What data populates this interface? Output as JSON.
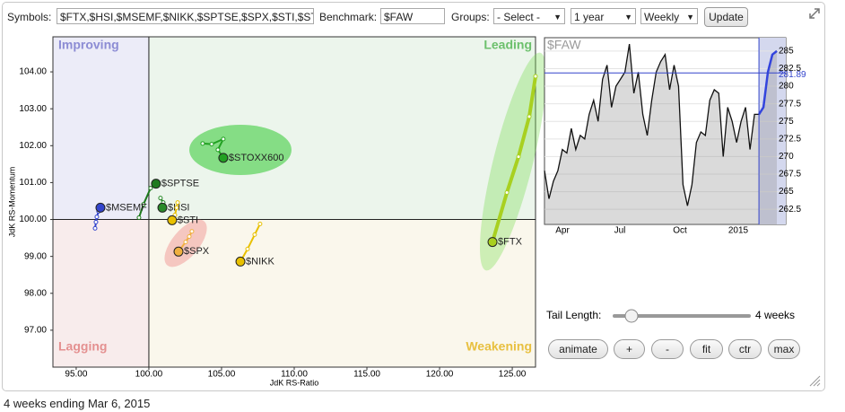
{
  "toolbar": {
    "symbols_label": "Symbols:",
    "symbols_value": "$FTX,$HSI,$MSEMF,$NIKK,$SPTSE,$SPX,$STI,$ST",
    "benchmark_label": "Benchmark:",
    "benchmark_value": "$FAW",
    "groups_label": "Groups:",
    "groups_value": "- Select -",
    "period": "1 year",
    "frequency": "Weekly",
    "update_button": "Update"
  },
  "rrg": {
    "xlabel": "JdK RS-Ratio",
    "ylabel": "JdK RS-Momentum",
    "xlim": [
      93.4,
      126.6
    ],
    "ylim": [
      96.0,
      104.95
    ],
    "center": [
      100,
      100
    ],
    "xticks": [
      {
        "value": 95,
        "label": "95.00"
      },
      {
        "value": 100,
        "label": "100.00"
      },
      {
        "value": 105,
        "label": "105.00"
      },
      {
        "value": 110,
        "label": "110.00"
      },
      {
        "value": 115,
        "label": "115.00"
      },
      {
        "value": 120,
        "label": "120.00"
      },
      {
        "value": 125,
        "label": "125.00"
      }
    ],
    "yticks": [
      {
        "value": 97,
        "label": "97.00"
      },
      {
        "value": 98,
        "label": "98.00"
      },
      {
        "value": 99,
        "label": "99.00"
      },
      {
        "value": 100,
        "label": "100.00"
      },
      {
        "value": 101,
        "label": "101.00"
      },
      {
        "value": 102,
        "label": "102.00"
      },
      {
        "value": 103,
        "label": "103.00"
      },
      {
        "value": 104,
        "label": "104.00"
      }
    ],
    "quadrants": {
      "improving": "Improving",
      "leading": "Leading",
      "weakening": "Weakening",
      "lagging": "Lagging"
    },
    "series": [
      {
        "name": "$FTX",
        "color": "#a8d020",
        "x": [
          126.6,
          126.17,
          125.43,
          124.63,
          123.64
        ],
        "y": [
          103.88,
          102.79,
          101.7,
          100.73,
          99.39
        ]
      },
      {
        "name": "$STOXX600",
        "color": "#22a022",
        "x": [
          103.7,
          104.32,
          105.12,
          104.75,
          105.12
        ],
        "y": [
          102.06,
          102.04,
          102.18,
          101.89,
          101.67
        ]
      },
      {
        "name": "$SPTSE",
        "color": "#1e7a1e",
        "x": [
          99.32,
          99.63,
          100.12,
          100.37,
          100.49
        ],
        "y": [
          100.05,
          100.41,
          100.85,
          100.92,
          100.97
        ]
      },
      {
        "name": "$HSI",
        "color": "#2a8a2a",
        "x": [
          100.8,
          100.99,
          100.86,
          100.93
        ],
        "y": [
          100.58,
          100.46,
          100.39,
          100.32
        ]
      },
      {
        "name": "$MSEMF",
        "color": "#3344cc",
        "x": [
          96.3,
          96.36,
          96.42,
          96.54,
          96.67
        ],
        "y": [
          99.76,
          99.93,
          100.07,
          100.22,
          100.32
        ]
      },
      {
        "name": "$STI",
        "color": "#e8c000",
        "x": [
          101.98,
          101.91,
          101.79,
          101.6
        ],
        "y": [
          100.46,
          100.32,
          100.12,
          99.98
        ]
      },
      {
        "name": "$SPX",
        "color": "#f0b040",
        "x": [
          102.96,
          102.78,
          102.53,
          102.04
        ],
        "y": [
          99.68,
          99.54,
          99.39,
          99.13
        ]
      },
      {
        "name": "$NIKK",
        "color": "#e8c000",
        "x": [
          107.65,
          107.28,
          106.79,
          106.3
        ],
        "y": [
          99.88,
          99.59,
          99.2,
          98.86
        ]
      }
    ]
  },
  "benchmark_chart": {
    "title": "$FAW",
    "x_labels": [
      "Apr",
      "Jul",
      "Oct",
      "2015"
    ],
    "ylim": [
      260.35,
      286.9
    ],
    "yticks": [
      262.5,
      265,
      267.5,
      270,
      272.5,
      275,
      277.5,
      280,
      282.5,
      285
    ],
    "reference_value": 281.89,
    "prices": [
      268,
      264,
      266.5,
      268,
      271,
      270.5,
      274,
      271,
      273,
      272.5,
      276,
      278,
      275,
      281,
      283,
      277,
      280,
      281,
      282,
      286,
      279,
      282,
      276,
      273,
      278,
      282,
      283.5,
      284.5,
      279.5,
      283,
      280,
      266,
      263,
      266,
      272,
      273.5,
      273,
      278,
      279.5,
      279,
      270,
      277,
      275,
      272,
      275,
      277,
      271,
      276,
      276,
      277,
      282,
      284.5,
      285
    ]
  },
  "controls": {
    "tail_length_label": "Tail Length:",
    "tail_length_value": "4 weeks",
    "buttons": [
      "animate",
      "+",
      "-",
      "fit",
      "ctr",
      "max"
    ]
  },
  "footer": "4 weeks ending Mar 6, 2015"
}
